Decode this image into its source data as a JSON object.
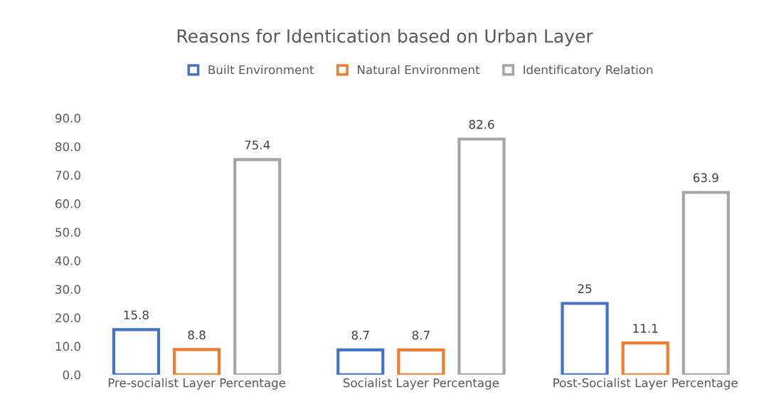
{
  "chart_data": {
    "type": "bar",
    "title": "Reasons for Identication based on Urban Layer",
    "categories": [
      "Pre-socialist Layer Percentage",
      "Socialist Layer Percentage",
      "Post-Socialist Layer Percentage"
    ],
    "series": [
      {
        "name": "Built Environment",
        "color": "#4472c4",
        "values": [
          15.8,
          8.7,
          25
        ]
      },
      {
        "name": "Natural Environment",
        "color": "#ed7d31",
        "values": [
          8.8,
          8.7,
          11.1
        ]
      },
      {
        "name": "Identificatory Relation",
        "color": "#a5a5a5",
        "values": [
          75.4,
          82.6,
          63.9
        ]
      }
    ],
    "ylim": [
      0,
      90
    ],
    "yticks": [
      {
        "value": 0,
        "label": "0.0"
      },
      {
        "value": 10,
        "label": "10.0"
      },
      {
        "value": 20,
        "label": "20.0"
      },
      {
        "value": 30,
        "label": "30.0"
      },
      {
        "value": 40,
        "label": "40.0"
      },
      {
        "value": 50,
        "label": "50.0"
      },
      {
        "value": 60,
        "label": "60.0"
      },
      {
        "value": 70,
        "label": "70.0"
      },
      {
        "value": 80,
        "label": "80.0"
      },
      {
        "value": 90,
        "label": "90.0"
      }
    ],
    "data_labels": true,
    "grid": false,
    "legend": "top"
  }
}
